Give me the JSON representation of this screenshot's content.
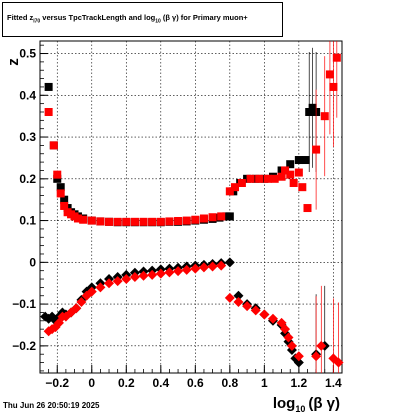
{
  "title": {
    "prefix": "Fitted  z",
    "sub1": "I70",
    "middle": "  versus TpcTrackLength and log",
    "sub2": "10",
    "suffix": " (β  γ) for Primary muon+"
  },
  "timestamp": "Thu Jun 26 20:50:19 2025",
  "chart_data": {
    "type": "scatter",
    "xlim": [
      -0.3,
      1.45
    ],
    "ylim": [
      -0.265,
      0.53
    ],
    "grid": true,
    "x_ticks": [
      -0.2,
      0,
      0.2,
      0.4,
      0.6,
      0.8,
      1,
      1.2,
      1.4
    ],
    "x_tick_labels": [
      "−0.2",
      "0",
      "0.2",
      "0.4",
      "0.6",
      "0.8",
      "1",
      "1.2",
      "1.4"
    ],
    "y_ticks": [
      -0.2,
      -0.1,
      0,
      0.1,
      0.2,
      0.3,
      0.4,
      0.5
    ],
    "y_tick_labels": [
      "−0.2",
      "−0.1",
      "0",
      "0.1",
      "0.2",
      "0.3",
      "0.4",
      "0.5"
    ],
    "ylabel": "z",
    "xlabel": {
      "main": "log",
      "sub": "10",
      "rest": "(β γ)"
    },
    "colors": {
      "black": "#000000",
      "red": "#ff0000"
    },
    "series": [
      {
        "color": "black",
        "marker": "square",
        "points": [
          [
            -0.25,
            0.42
          ],
          [
            -0.22,
            0.28
          ],
          [
            -0.2,
            0.2
          ],
          [
            -0.18,
            0.18
          ],
          [
            -0.16,
            0.15
          ],
          [
            -0.14,
            0.13
          ],
          [
            -0.12,
            0.12
          ],
          [
            -0.1,
            0.115
          ],
          [
            -0.08,
            0.11
          ],
          [
            -0.05,
            0.105
          ],
          [
            0.0,
            0.1
          ],
          [
            0.05,
            0.098
          ],
          [
            0.1,
            0.097
          ],
          [
            0.15,
            0.096
          ],
          [
            0.2,
            0.096
          ],
          [
            0.25,
            0.096
          ],
          [
            0.3,
            0.096
          ],
          [
            0.35,
            0.096
          ],
          [
            0.4,
            0.096
          ],
          [
            0.45,
            0.097
          ],
          [
            0.5,
            0.097
          ],
          [
            0.55,
            0.098
          ],
          [
            0.6,
            0.1
          ],
          [
            0.65,
            0.102
          ],
          [
            0.7,
            0.104
          ],
          [
            0.74,
            0.107
          ],
          [
            0.78,
            0.11
          ],
          [
            0.8,
            0.11
          ],
          [
            0.82,
            0.17
          ],
          [
            0.86,
            0.19
          ],
          [
            0.9,
            0.2
          ],
          [
            0.95,
            0.2
          ],
          [
            1.0,
            0.2
          ],
          [
            1.05,
            0.205
          ],
          [
            1.1,
            0.22
          ],
          [
            1.15,
            0.235
          ],
          [
            1.2,
            0.245
          ],
          [
            1.24,
            0.245
          ],
          [
            1.26,
            0.36
          ],
          [
            1.28,
            0.37
          ],
          [
            1.3,
            0.36
          ]
        ]
      },
      {
        "color": "red",
        "marker": "square",
        "points": [
          [
            -0.25,
            0.36
          ],
          [
            -0.22,
            0.28
          ],
          [
            -0.2,
            0.21
          ],
          [
            -0.18,
            0.165
          ],
          [
            -0.16,
            0.135
          ],
          [
            -0.14,
            0.12
          ],
          [
            -0.12,
            0.115
          ],
          [
            -0.1,
            0.11
          ],
          [
            -0.08,
            0.105
          ],
          [
            -0.05,
            0.102
          ],
          [
            0.0,
            0.1
          ],
          [
            0.05,
            0.098
          ],
          [
            0.1,
            0.097
          ],
          [
            0.15,
            0.097
          ],
          [
            0.2,
            0.097
          ],
          [
            0.25,
            0.097
          ],
          [
            0.3,
            0.097
          ],
          [
            0.35,
            0.097
          ],
          [
            0.4,
            0.097
          ],
          [
            0.45,
            0.098
          ],
          [
            0.5,
            0.099
          ],
          [
            0.55,
            0.1
          ],
          [
            0.6,
            0.102
          ],
          [
            0.65,
            0.105
          ],
          [
            0.7,
            0.108
          ],
          [
            0.75,
            0.11
          ],
          [
            0.8,
            0.17
          ],
          [
            0.83,
            0.18
          ],
          [
            0.87,
            0.19
          ],
          [
            0.92,
            0.2
          ],
          [
            0.97,
            0.2
          ],
          [
            1.02,
            0.2
          ],
          [
            1.06,
            0.2
          ],
          [
            1.1,
            0.205
          ],
          [
            1.12,
            0.22
          ],
          [
            1.15,
            0.21
          ],
          [
            1.17,
            0.19
          ],
          [
            1.2,
            0.215
          ],
          [
            1.22,
            0.18
          ],
          [
            1.25,
            0.13
          ],
          [
            1.3,
            0.27
          ],
          [
            1.35,
            0.35
          ],
          [
            1.38,
            0.45
          ],
          [
            1.4,
            0.42
          ],
          [
            1.42,
            0.49
          ]
        ]
      },
      {
        "color": "black",
        "marker": "diamond",
        "points": [
          [
            -0.27,
            -0.13
          ],
          [
            -0.25,
            -0.135
          ],
          [
            -0.23,
            -0.13
          ],
          [
            -0.21,
            -0.14
          ],
          [
            -0.19,
            -0.13
          ],
          [
            -0.17,
            -0.12
          ],
          [
            -0.15,
            -0.125
          ],
          [
            -0.12,
            -0.12
          ],
          [
            -0.09,
            -0.11
          ],
          [
            -0.06,
            -0.09
          ],
          [
            -0.03,
            -0.07
          ],
          [
            0.0,
            -0.06
          ],
          [
            0.05,
            -0.05
          ],
          [
            0.1,
            -0.04
          ],
          [
            0.15,
            -0.035
          ],
          [
            0.2,
            -0.03
          ],
          [
            0.25,
            -0.025
          ],
          [
            0.3,
            -0.022
          ],
          [
            0.35,
            -0.02
          ],
          [
            0.4,
            -0.017
          ],
          [
            0.45,
            -0.015
          ],
          [
            0.5,
            -0.013
          ],
          [
            0.55,
            -0.01
          ],
          [
            0.6,
            -0.008
          ],
          [
            0.65,
            -0.006
          ],
          [
            0.7,
            -0.004
          ],
          [
            0.75,
            -0.002
          ],
          [
            0.8,
            0.0
          ],
          [
            0.85,
            -0.08
          ],
          [
            0.9,
            -0.1
          ],
          [
            0.95,
            -0.11
          ],
          [
            1.0,
            -0.125
          ],
          [
            1.05,
            -0.14
          ],
          [
            1.1,
            -0.15
          ],
          [
            1.12,
            -0.17
          ],
          [
            1.14,
            -0.19
          ],
          [
            1.16,
            -0.21
          ],
          [
            1.18,
            -0.23
          ],
          [
            1.2,
            -0.24
          ],
          [
            1.3,
            -0.22
          ],
          [
            1.35,
            -0.2
          ]
        ]
      },
      {
        "color": "red",
        "marker": "diamond",
        "points": [
          [
            -0.25,
            -0.165
          ],
          [
            -0.23,
            -0.16
          ],
          [
            -0.21,
            -0.155
          ],
          [
            -0.19,
            -0.145
          ],
          [
            -0.17,
            -0.13
          ],
          [
            -0.15,
            -0.13
          ],
          [
            -0.12,
            -0.12
          ],
          [
            -0.09,
            -0.11
          ],
          [
            -0.06,
            -0.095
          ],
          [
            -0.03,
            -0.08
          ],
          [
            0.0,
            -0.07
          ],
          [
            0.05,
            -0.06
          ],
          [
            0.1,
            -0.05
          ],
          [
            0.15,
            -0.045
          ],
          [
            0.2,
            -0.04
          ],
          [
            0.25,
            -0.035
          ],
          [
            0.3,
            -0.032
          ],
          [
            0.35,
            -0.03
          ],
          [
            0.4,
            -0.027
          ],
          [
            0.45,
            -0.024
          ],
          [
            0.5,
            -0.021
          ],
          [
            0.55,
            -0.018
          ],
          [
            0.6,
            -0.015
          ],
          [
            0.65,
            -0.012
          ],
          [
            0.7,
            -0.01
          ],
          [
            0.75,
            -0.008
          ],
          [
            0.8,
            -0.085
          ],
          [
            0.85,
            -0.095
          ],
          [
            0.9,
            -0.105
          ],
          [
            0.95,
            -0.115
          ],
          [
            1.0,
            -0.125
          ],
          [
            1.05,
            -0.135
          ],
          [
            1.1,
            -0.145
          ],
          [
            1.12,
            -0.16
          ],
          [
            1.14,
            -0.18
          ],
          [
            1.16,
            -0.2
          ],
          [
            1.2,
            -0.225
          ],
          [
            1.3,
            -0.225
          ],
          [
            1.33,
            -0.2
          ],
          [
            1.4,
            -0.23
          ],
          [
            1.43,
            -0.24
          ]
        ]
      }
    ]
  }
}
